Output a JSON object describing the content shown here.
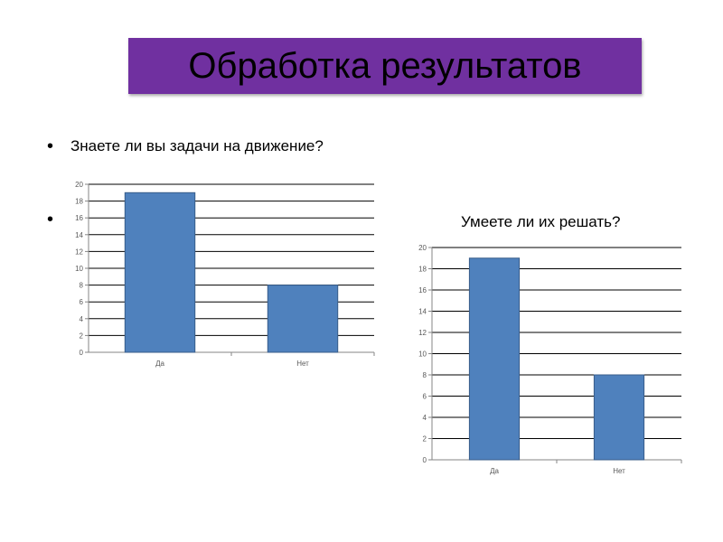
{
  "title": "Обработка результатов",
  "bullets": [
    {
      "text": "Знаете ли вы задачи на движение?"
    },
    {
      "text": ""
    }
  ],
  "colors": {
    "title_bg": "#7030a0",
    "bar": "#4f81bd",
    "bar_edge": "#385d8a",
    "grid": "#000000"
  },
  "chart_data": [
    {
      "type": "bar",
      "title": "",
      "categories": [
        "Да",
        "Нет"
      ],
      "values": [
        19,
        8
      ],
      "ylim": [
        0,
        20
      ],
      "yticks": [
        0,
        2,
        4,
        6,
        8,
        10,
        12,
        14,
        16,
        18,
        20
      ],
      "grid": true,
      "legend": "none"
    },
    {
      "type": "bar",
      "title": "Умеете ли их решать?",
      "categories": [
        "Да",
        "Нет"
      ],
      "values": [
        19,
        8
      ],
      "ylim": [
        0,
        20
      ],
      "yticks": [
        0,
        2,
        4,
        6,
        8,
        10,
        12,
        14,
        16,
        18,
        20
      ],
      "grid": true,
      "legend": "none"
    }
  ]
}
